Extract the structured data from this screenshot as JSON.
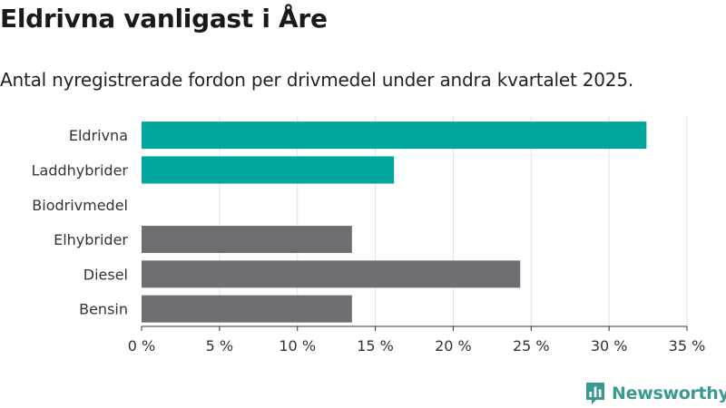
{
  "header": {
    "title": "Eldrivna vanligast i Åre",
    "subtitle": "Antal nyregistrerade fordon per drivmedel under andra kvartalet 2025."
  },
  "brand": {
    "name": "Newsworthy",
    "icon": "newsworthy-logo-icon"
  },
  "colors": {
    "highlight": "#00a59b",
    "other": "#6e6d72",
    "grid": "#e2e2e2",
    "axis": "#333333",
    "brand": "#3a9a90"
  },
  "chart_data": {
    "type": "bar",
    "orientation": "horizontal",
    "categories": [
      "Eldrivna",
      "Laddhybrider",
      "Biodrivmedel",
      "Elhybrider",
      "Diesel",
      "Bensin"
    ],
    "values": [
      32.4,
      16.2,
      0,
      13.5,
      24.3,
      13.5
    ],
    "bar_colors": [
      "highlight",
      "highlight",
      "highlight",
      "other",
      "other",
      "other"
    ],
    "xlim": [
      0,
      35
    ],
    "xticks": [
      0,
      5,
      10,
      15,
      20,
      25,
      30,
      35
    ],
    "xtick_labels": [
      "0 %",
      "5 %",
      "10 %",
      "15 %",
      "20 %",
      "25 %",
      "30 %",
      "35 %"
    ],
    "grid": true
  }
}
